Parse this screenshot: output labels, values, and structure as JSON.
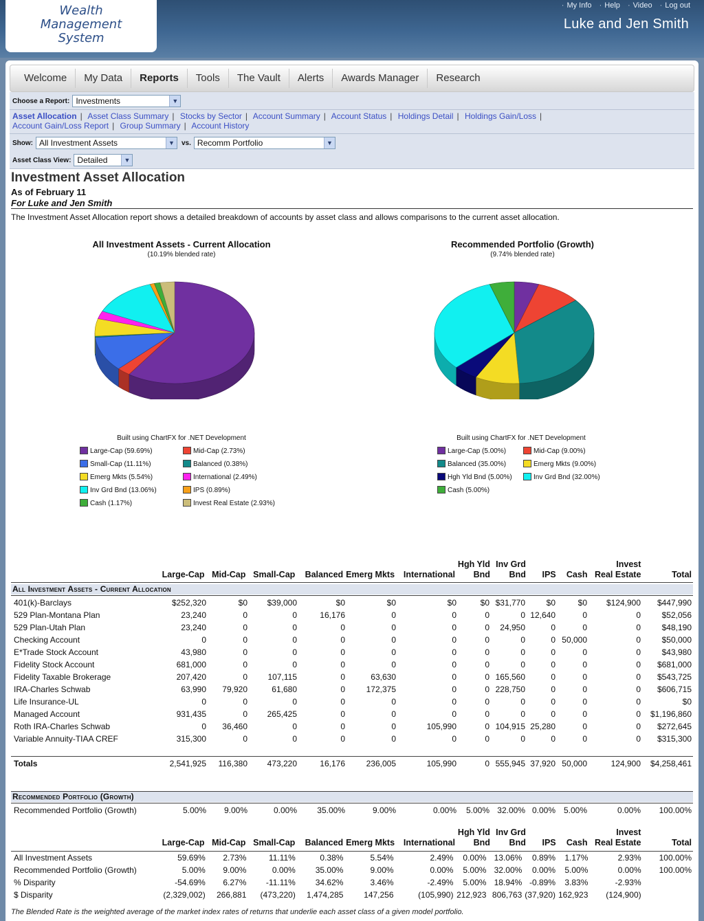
{
  "header": {
    "logo_lines": [
      "Wealth",
      "Management",
      "System"
    ],
    "top_links": [
      "My Info",
      "Help",
      "Video",
      "Log out"
    ],
    "user_name": "Luke and Jen Smith"
  },
  "nav": {
    "tabs": [
      "Welcome",
      "My Data",
      "Reports",
      "Tools",
      "The Vault",
      "Alerts",
      "Awards Manager",
      "Research"
    ],
    "active": "Reports"
  },
  "controls": {
    "choose_label": "Choose a Report:",
    "choose_value": "Investments",
    "report_links": [
      "Asset Allocation",
      "Asset Class Summary",
      "Stocks by Sector",
      "Account Summary",
      "Account Status",
      "Holdings Detail",
      "Holdings Gain/Loss",
      "Account Gain/Loss Report",
      "Group Summary",
      "Account History"
    ],
    "show_label": "Show:",
    "show_value": "All Investment Assets",
    "vs_label": "vs.",
    "vs_value": "Recomm Portfolio",
    "view_label": "Asset Class View:",
    "view_value": "Detailed"
  },
  "report": {
    "title": "Investment Asset Allocation",
    "as_of": "As of February 11",
    "for_line": "For Luke and Jen Smith",
    "description": "The Investment Asset Allocation report shows a detailed breakdown of accounts by asset class and allows comparisons to the current asset allocation.",
    "footnote": "The Blended Rate is the weighted average of the market index rates of returns that underlie each asset class of a given model portfolio."
  },
  "chart_data": [
    {
      "type": "pie",
      "title": "All Investment Assets - Current Allocation",
      "subtitle": "(10.19% blended rate)",
      "credit": "Built using ChartFX for .NET Development",
      "categories": [
        "Large-Cap",
        "Mid-Cap",
        "Small-Cap",
        "Balanced",
        "Emerg Mkts",
        "International",
        "Inv Grd Bnd",
        "IPS",
        "Cash",
        "Invest Real Estate"
      ],
      "values": [
        59.69,
        2.73,
        11.11,
        0.38,
        5.54,
        2.49,
        13.06,
        0.89,
        1.17,
        2.93
      ],
      "legend": [
        "Large-Cap (59.69%)",
        "Mid-Cap (2.73%)",
        "Small-Cap (11.11%)",
        "Balanced (0.38%)",
        "Emerg Mkts (5.54%)",
        "International (2.49%)",
        "Inv Grd Bnd (13.06%)",
        "IPS (0.89%)",
        "Cash (1.17%)",
        "Invest Real Estate (2.93%)"
      ],
      "colors": [
        "#7030a0",
        "#ee4433",
        "#3b6ee8",
        "#138a8a",
        "#f4dc24",
        "#ff22ee",
        "#11f0f0",
        "#f7a01a",
        "#3fae3a",
        "#cbbd7a"
      ]
    },
    {
      "type": "pie",
      "title": "Recommended Portfolio (Growth)",
      "subtitle": "(9.74% blended rate)",
      "credit": "Built using ChartFX for .NET Development",
      "categories": [
        "Large-Cap",
        "Mid-Cap",
        "Balanced",
        "Emerg Mkts",
        "Hgh Yld Bnd",
        "Inv Grd Bnd",
        "Cash"
      ],
      "values": [
        5.0,
        9.0,
        35.0,
        9.0,
        5.0,
        32.0,
        5.0
      ],
      "legend": [
        "Large-Cap (5.00%)",
        "Mid-Cap (9.00%)",
        "Balanced (35.00%)",
        "Emerg Mkts (9.00%)",
        "Hgh Yld Bnd (5.00%)",
        "Inv Grd Bnd (32.00%)",
        "Cash (5.00%)"
      ],
      "colors": [
        "#7030a0",
        "#ee4433",
        "#138a8a",
        "#f4dc24",
        "#0a0a7a",
        "#11f0f0",
        "#3fae3a"
      ]
    }
  ],
  "holdings": {
    "headers": [
      [
        "",
        ""
      ],
      [
        "",
        "Large-Cap"
      ],
      [
        "",
        "Mid-Cap"
      ],
      [
        "",
        "Small-Cap"
      ],
      [
        "",
        "Balanced"
      ],
      [
        "",
        "Emerg Mkts"
      ],
      [
        "",
        "International"
      ],
      [
        "Hgh Yld",
        "Bnd"
      ],
      [
        "Inv Grd",
        "Bnd"
      ],
      [
        "",
        "IPS"
      ],
      [
        "",
        "Cash"
      ],
      [
        "Invest",
        "Real Estate"
      ],
      [
        "",
        "Total"
      ]
    ],
    "section_current": "All Investment Assets - Current Allocation",
    "rows": [
      [
        "401(k)-Barclays",
        "$252,320",
        "$0",
        "$39,000",
        "$0",
        "$0",
        "$0",
        "$0",
        "$31,770",
        "$0",
        "$0",
        "$124,900",
        "$447,990"
      ],
      [
        "529 Plan-Montana Plan",
        "23,240",
        "0",
        "0",
        "16,176",
        "0",
        "0",
        "0",
        "0",
        "12,640",
        "0",
        "0",
        "$52,056"
      ],
      [
        "529 Plan-Utah Plan",
        "23,240",
        "0",
        "0",
        "0",
        "0",
        "0",
        "0",
        "24,950",
        "0",
        "0",
        "0",
        "$48,190"
      ],
      [
        "Checking Account",
        "0",
        "0",
        "0",
        "0",
        "0",
        "0",
        "0",
        "0",
        "0",
        "50,000",
        "0",
        "$50,000"
      ],
      [
        "E*Trade Stock Account",
        "43,980",
        "0",
        "0",
        "0",
        "0",
        "0",
        "0",
        "0",
        "0",
        "0",
        "0",
        "$43,980"
      ],
      [
        "Fidelity Stock Account",
        "681,000",
        "0",
        "0",
        "0",
        "0",
        "0",
        "0",
        "0",
        "0",
        "0",
        "0",
        "$681,000"
      ],
      [
        "Fidelity Taxable Brokerage",
        "207,420",
        "0",
        "107,115",
        "0",
        "63,630",
        "0",
        "0",
        "165,560",
        "0",
        "0",
        "0",
        "$543,725"
      ],
      [
        "IRA-Charles Schwab",
        "63,990",
        "79,920",
        "61,680",
        "0",
        "172,375",
        "0",
        "0",
        "228,750",
        "0",
        "0",
        "0",
        "$606,715"
      ],
      [
        "Life Insurance-UL",
        "0",
        "0",
        "0",
        "0",
        "0",
        "0",
        "0",
        "0",
        "0",
        "0",
        "0",
        "$0"
      ],
      [
        "Managed Account",
        "931,435",
        "0",
        "265,425",
        "0",
        "0",
        "0",
        "0",
        "0",
        "0",
        "0",
        "0",
        "$1,196,860"
      ],
      [
        "Roth IRA-Charles Schwab",
        "0",
        "36,460",
        "0",
        "0",
        "0",
        "105,990",
        "0",
        "104,915",
        "25,280",
        "0",
        "0",
        "$272,645"
      ],
      [
        "Variable Annuity-TIAA CREF",
        "315,300",
        "0",
        "0",
        "0",
        "0",
        "0",
        "0",
        "0",
        "0",
        "0",
        "0",
        "$315,300"
      ]
    ],
    "totals": [
      "Totals",
      "2,541,925",
      "116,380",
      "473,220",
      "16,176",
      "236,005",
      "105,990",
      "0",
      "555,945",
      "37,920",
      "50,000",
      "124,900",
      "$4,258,461"
    ],
    "section_recommended": "Recommended Portfolio (Growth)",
    "recommended_row": [
      "Recommended Portfolio (Growth)",
      "5.00%",
      "9.00%",
      "0.00%",
      "35.00%",
      "9.00%",
      "0.00%",
      "5.00%",
      "32.00%",
      "0.00%",
      "5.00%",
      "0.00%",
      "100.00%"
    ]
  },
  "comparison": {
    "rows": [
      [
        "All Investment Assets",
        "59.69%",
        "2.73%",
        "11.11%",
        "0.38%",
        "5.54%",
        "2.49%",
        "0.00%",
        "13.06%",
        "0.89%",
        "1.17%",
        "2.93%",
        "100.00%"
      ],
      [
        "Recommended Portfolio (Growth)",
        "5.00%",
        "9.00%",
        "0.00%",
        "35.00%",
        "9.00%",
        "0.00%",
        "5.00%",
        "32.00%",
        "0.00%",
        "5.00%",
        "0.00%",
        "100.00%"
      ],
      [
        "% Disparity",
        "-54.69%",
        "6.27%",
        "-11.11%",
        "34.62%",
        "3.46%",
        "-2.49%",
        "5.00%",
        "18.94%",
        "-0.89%",
        "3.83%",
        "-2.93%",
        ""
      ],
      [
        "$ Disparity",
        "(2,329,002)",
        "266,881",
        "(473,220)",
        "1,474,285",
        "147,256",
        "(105,990)",
        "212,923",
        "806,763",
        "(37,920)",
        "162,923",
        "(124,900)",
        ""
      ]
    ]
  }
}
